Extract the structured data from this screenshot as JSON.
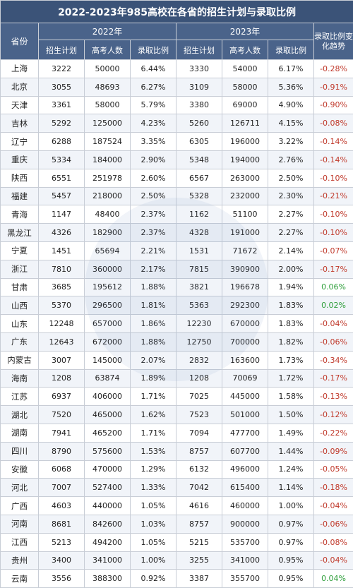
{
  "title": "2022-2023年985高校在各省的招生计划与录取比例",
  "headers": {
    "province": "省份",
    "year_2022": "2022年",
    "year_2023": "2023年",
    "plan": "招生计划",
    "candidates": "高考人数",
    "ratio": "录取比例",
    "trend": "录取比例变化趋势"
  },
  "colors": {
    "header_bg": "#4a638a",
    "title_bg": "#3b5378",
    "negative": "#c0392b",
    "positive": "#2e9e3a"
  },
  "rows": [
    {
      "province": "上海",
      "plan22": "3222",
      "cand22": "50000",
      "ratio22": "6.44%",
      "plan23": "3330",
      "cand23": "54000",
      "ratio23": "6.17%",
      "trend": "-0.28%"
    },
    {
      "province": "北京",
      "plan22": "3055",
      "cand22": "48693",
      "ratio22": "6.27%",
      "plan23": "3109",
      "cand23": "58000",
      "ratio23": "5.36%",
      "trend": "-0.91%"
    },
    {
      "province": "天津",
      "plan22": "3361",
      "cand22": "58000",
      "ratio22": "5.79%",
      "plan23": "3380",
      "cand23": "69000",
      "ratio23": "4.90%",
      "trend": "-0.90%"
    },
    {
      "province": "吉林",
      "plan22": "5292",
      "cand22": "125000",
      "ratio22": "4.23%",
      "plan23": "5260",
      "cand23": "126711",
      "ratio23": "4.15%",
      "trend": "-0.08%"
    },
    {
      "province": "辽宁",
      "plan22": "6288",
      "cand22": "187524",
      "ratio22": "3.35%",
      "plan23": "6305",
      "cand23": "196000",
      "ratio23": "3.22%",
      "trend": "-0.14%"
    },
    {
      "province": "重庆",
      "plan22": "5334",
      "cand22": "184000",
      "ratio22": "2.90%",
      "plan23": "5348",
      "cand23": "194000",
      "ratio23": "2.76%",
      "trend": "-0.14%"
    },
    {
      "province": "陕西",
      "plan22": "6551",
      "cand22": "251978",
      "ratio22": "2.60%",
      "plan23": "6567",
      "cand23": "263000",
      "ratio23": "2.50%",
      "trend": "-0.10%"
    },
    {
      "province": "福建",
      "plan22": "5457",
      "cand22": "218000",
      "ratio22": "2.50%",
      "plan23": "5328",
      "cand23": "232000",
      "ratio23": "2.30%",
      "trend": "-0.21%"
    },
    {
      "province": "青海",
      "plan22": "1147",
      "cand22": "48400",
      "ratio22": "2.37%",
      "plan23": "1162",
      "cand23": "51100",
      "ratio23": "2.27%",
      "trend": "-0.10%"
    },
    {
      "province": "黑龙江",
      "plan22": "4326",
      "cand22": "182900",
      "ratio22": "2.37%",
      "plan23": "4328",
      "cand23": "191000",
      "ratio23": "2.27%",
      "trend": "-0.10%"
    },
    {
      "province": "宁夏",
      "plan22": "1451",
      "cand22": "65694",
      "ratio22": "2.21%",
      "plan23": "1531",
      "cand23": "71672",
      "ratio23": "2.14%",
      "trend": "-0.07%"
    },
    {
      "province": "浙江",
      "plan22": "7810",
      "cand22": "360000",
      "ratio22": "2.17%",
      "plan23": "7815",
      "cand23": "390900",
      "ratio23": "2.00%",
      "trend": "-0.17%"
    },
    {
      "province": "甘肃",
      "plan22": "3685",
      "cand22": "195612",
      "ratio22": "1.88%",
      "plan23": "3821",
      "cand23": "196678",
      "ratio23": "1.94%",
      "trend": "0.06%"
    },
    {
      "province": "山西",
      "plan22": "5370",
      "cand22": "296500",
      "ratio22": "1.81%",
      "plan23": "5363",
      "cand23": "292300",
      "ratio23": "1.83%",
      "trend": "0.02%"
    },
    {
      "province": "山东",
      "plan22": "12248",
      "cand22": "657000",
      "ratio22": "1.86%",
      "plan23": "12230",
      "cand23": "670000",
      "ratio23": "1.83%",
      "trend": "-0.04%"
    },
    {
      "province": "广东",
      "plan22": "12643",
      "cand22": "672000",
      "ratio22": "1.88%",
      "plan23": "12750",
      "cand23": "700000",
      "ratio23": "1.82%",
      "trend": "-0.06%"
    },
    {
      "province": "内蒙古",
      "plan22": "3007",
      "cand22": "145000",
      "ratio22": "2.07%",
      "plan23": "2832",
      "cand23": "163600",
      "ratio23": "1.73%",
      "trend": "-0.34%"
    },
    {
      "province": "海南",
      "plan22": "1208",
      "cand22": "63874",
      "ratio22": "1.89%",
      "plan23": "1208",
      "cand23": "70069",
      "ratio23": "1.72%",
      "trend": "-0.17%"
    },
    {
      "province": "江苏",
      "plan22": "6937",
      "cand22": "406000",
      "ratio22": "1.71%",
      "plan23": "7025",
      "cand23": "445000",
      "ratio23": "1.58%",
      "trend": "-0.13%"
    },
    {
      "province": "湖北",
      "plan22": "7520",
      "cand22": "465000",
      "ratio22": "1.62%",
      "plan23": "7523",
      "cand23": "501000",
      "ratio23": "1.50%",
      "trend": "-0.12%"
    },
    {
      "province": "湖南",
      "plan22": "7941",
      "cand22": "465200",
      "ratio22": "1.71%",
      "plan23": "7094",
      "cand23": "477700",
      "ratio23": "1.49%",
      "trend": "-0.22%"
    },
    {
      "province": "四川",
      "plan22": "8790",
      "cand22": "575600",
      "ratio22": "1.53%",
      "plan23": "8757",
      "cand23": "607700",
      "ratio23": "1.44%",
      "trend": "-0.09%"
    },
    {
      "province": "安徽",
      "plan22": "6068",
      "cand22": "470000",
      "ratio22": "1.29%",
      "plan23": "6132",
      "cand23": "496000",
      "ratio23": "1.24%",
      "trend": "-0.05%"
    },
    {
      "province": "河北",
      "plan22": "7007",
      "cand22": "527400",
      "ratio22": "1.33%",
      "plan23": "7042",
      "cand23": "615400",
      "ratio23": "1.14%",
      "trend": "-0.18%"
    },
    {
      "province": "广西",
      "plan22": "4603",
      "cand22": "440000",
      "ratio22": "1.05%",
      "plan23": "4616",
      "cand23": "460000",
      "ratio23": "1.00%",
      "trend": "-0.04%"
    },
    {
      "province": "河南",
      "plan22": "8681",
      "cand22": "842600",
      "ratio22": "1.03%",
      "plan23": "8757",
      "cand23": "900000",
      "ratio23": "0.97%",
      "trend": "-0.06%"
    },
    {
      "province": "江西",
      "plan22": "5213",
      "cand22": "494200",
      "ratio22": "1.05%",
      "plan23": "5215",
      "cand23": "535700",
      "ratio23": "0.97%",
      "trend": "-0.08%"
    },
    {
      "province": "贵州",
      "plan22": "3400",
      "cand22": "341000",
      "ratio22": "1.00%",
      "plan23": "3255",
      "cand23": "341000",
      "ratio23": "0.95%",
      "trend": "-0.04%"
    },
    {
      "province": "云南",
      "plan22": "3556",
      "cand22": "388300",
      "ratio22": "0.92%",
      "plan23": "3387",
      "cand23": "355700",
      "ratio23": "0.95%",
      "trend": "0.04%"
    }
  ]
}
